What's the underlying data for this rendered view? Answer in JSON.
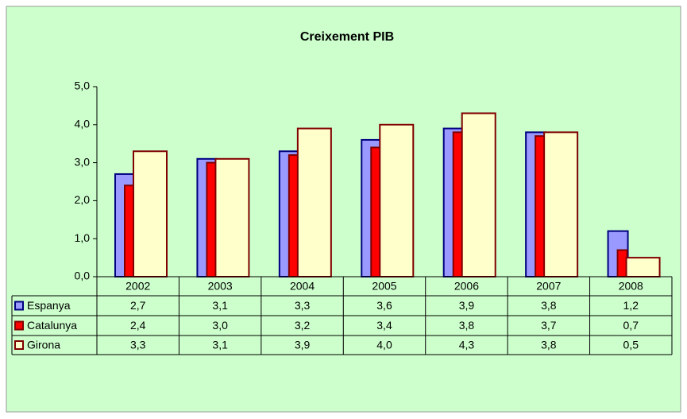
{
  "chart_data": {
    "type": "bar",
    "title": "Creixement PIB",
    "categories": [
      "2002",
      "2003",
      "2004",
      "2005",
      "2006",
      "2007",
      "2008"
    ],
    "series": [
      {
        "name": "Espanya",
        "color": "#9999ff",
        "edgecolor": "#000080",
        "values": [
          2.7,
          3.1,
          3.3,
          3.6,
          3.9,
          3.8,
          1.2
        ],
        "value_labels": [
          "2,7",
          "3,1",
          "3,3",
          "3,6",
          "3,9",
          "3,8",
          "1,2"
        ]
      },
      {
        "name": "Catalunya",
        "color": "#ff0000",
        "edgecolor": "#800000",
        "values": [
          2.4,
          3.0,
          3.2,
          3.4,
          3.8,
          3.7,
          0.7
        ],
        "value_labels": [
          "2,4",
          "3,0",
          "3,2",
          "3,4",
          "3,8",
          "3,7",
          "0,7"
        ]
      },
      {
        "name": "Girona",
        "color": "#ffffcc",
        "edgecolor": "#800000",
        "values": [
          3.3,
          3.1,
          3.9,
          4.0,
          4.3,
          3.8,
          0.5
        ],
        "value_labels": [
          "3,3",
          "3,1",
          "3,9",
          "4,0",
          "4,3",
          "3,8",
          "0,5"
        ]
      }
    ],
    "ylim": [
      0,
      5
    ],
    "yticks": [
      {
        "value": 0,
        "label": "0,0"
      },
      {
        "value": 1,
        "label": "1,0"
      },
      {
        "value": 2,
        "label": "2,0"
      },
      {
        "value": 3,
        "label": "3,0"
      },
      {
        "value": 4,
        "label": "4,0"
      },
      {
        "value": 5,
        "label": "5,0"
      }
    ],
    "grid": false
  }
}
